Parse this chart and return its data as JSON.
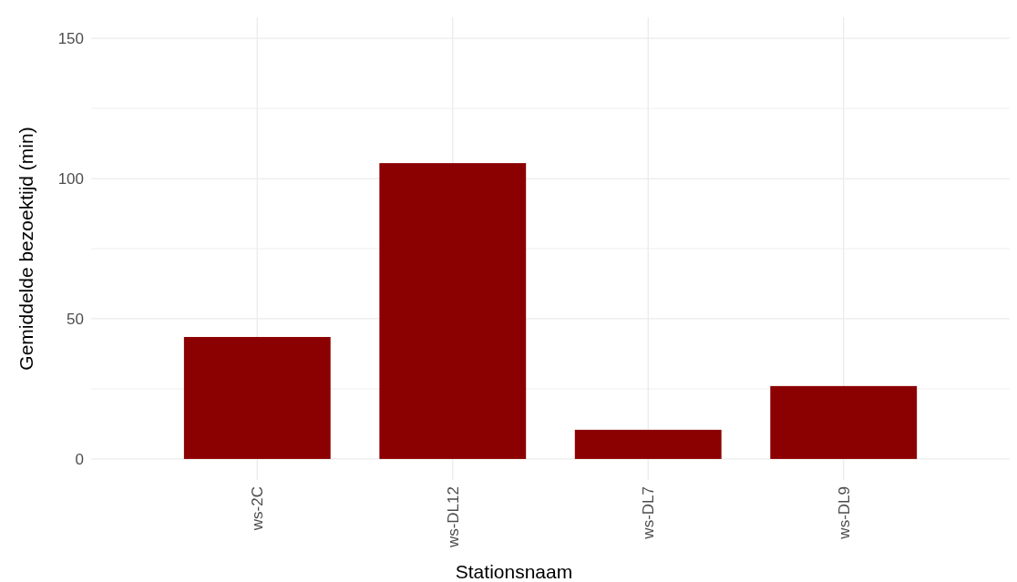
{
  "chart_data": {
    "type": "bar",
    "xlabel": "Stationsnaam",
    "ylabel": "Gemiddelde bezoektijd (min)",
    "categories": [
      "ws-2C",
      "ws-DL12",
      "ws-DL7",
      "ws-DL9"
    ],
    "values": [
      43.5,
      105.5,
      10.4,
      26
    ],
    "color": "#8b0000",
    "ylim": [
      -7.5,
      157.5
    ],
    "yticks": [
      0,
      {
        "value": 25,
        "label": null
      },
      50,
      {
        "value": 75,
        "label": null
      },
      100,
      {
        "value": 125,
        "label": null
      },
      150
    ],
    "grid": true
  }
}
